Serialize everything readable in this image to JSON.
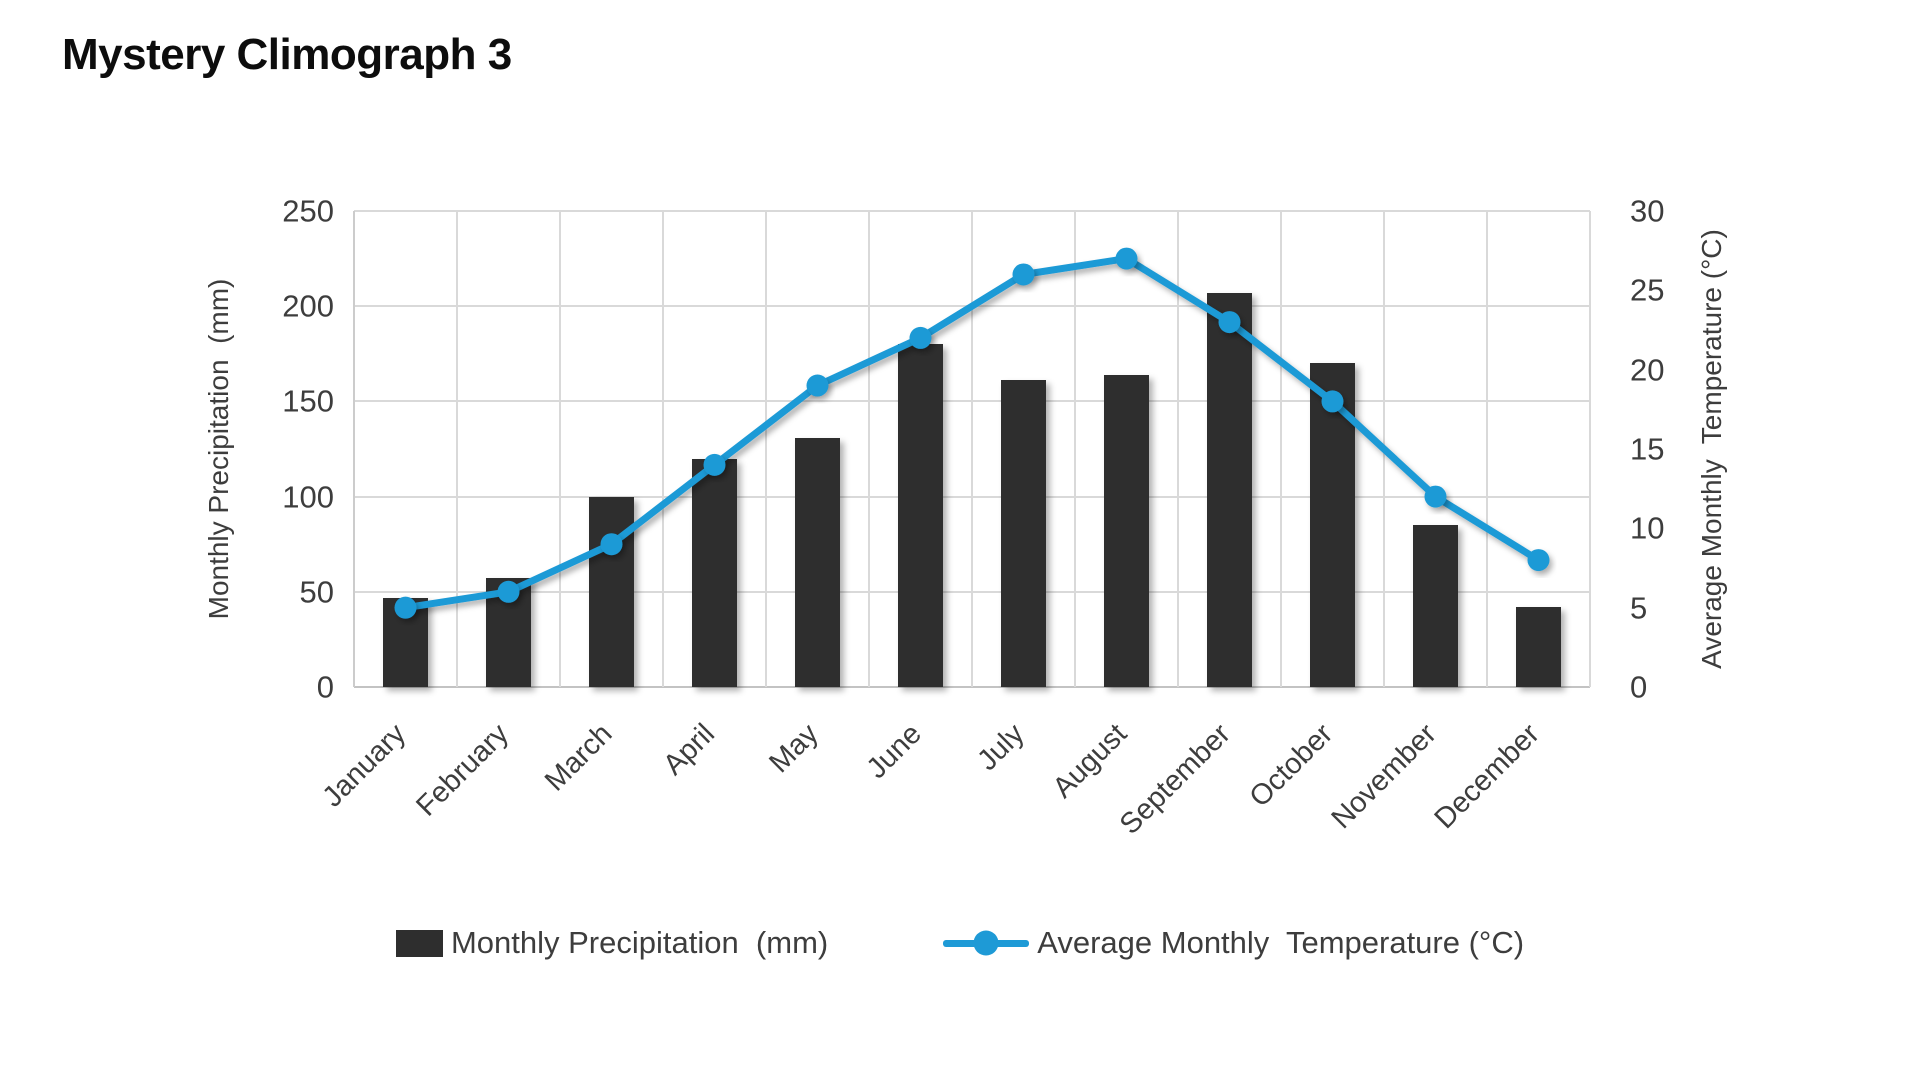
{
  "header": {
    "title": "Mystery Climograph 3"
  },
  "chart_data": {
    "type": "bar+line",
    "title": "Mystery Climograph 3",
    "categories": [
      "January",
      "February",
      "March",
      "April",
      "May",
      "June",
      "July",
      "August",
      "September",
      "October",
      "November",
      "December"
    ],
    "series": [
      {
        "name": "Monthly Precipitation  (mm)",
        "type": "bar",
        "yaxis": "left",
        "color": "#2e2e2e",
        "values": [
          47,
          57,
          100,
          120,
          131,
          180,
          161,
          164,
          207,
          170,
          85,
          42
        ]
      },
      {
        "name": "Average Monthly  Temperature (°C)",
        "type": "line",
        "yaxis": "right",
        "color": "#1e9ad6",
        "values": [
          5,
          6,
          9,
          14,
          19,
          22,
          26,
          27,
          23,
          18,
          12,
          8
        ]
      }
    ],
    "left_axis": {
      "label": "Monthly Precipitation  (mm)",
      "min": 0,
      "max": 250,
      "ticks": [
        0,
        50,
        100,
        150,
        200,
        250
      ]
    },
    "right_axis": {
      "label": "Average Monthly  Temperature (°C)",
      "min": 0,
      "max": 30,
      "ticks": [
        0,
        5,
        10,
        15,
        20,
        25,
        30
      ]
    },
    "grid": true,
    "legend_position": "bottom"
  },
  "legend": {
    "items": [
      {
        "label": "Monthly Precipitation  (mm)",
        "swatch": "bar-swatch",
        "color": "#2e2e2e"
      },
      {
        "label": "Average Monthly  Temperature (°C)",
        "swatch": "line-marker-swatch",
        "color": "#1e9ad6"
      }
    ]
  },
  "colors": {
    "bar": "#2e2e2e",
    "line": "#1e9ad6",
    "grid": "#d9d9d9",
    "axis_text": "#3d3d3d",
    "title_text": "#0d0d0d",
    "background": "#ffffff"
  }
}
